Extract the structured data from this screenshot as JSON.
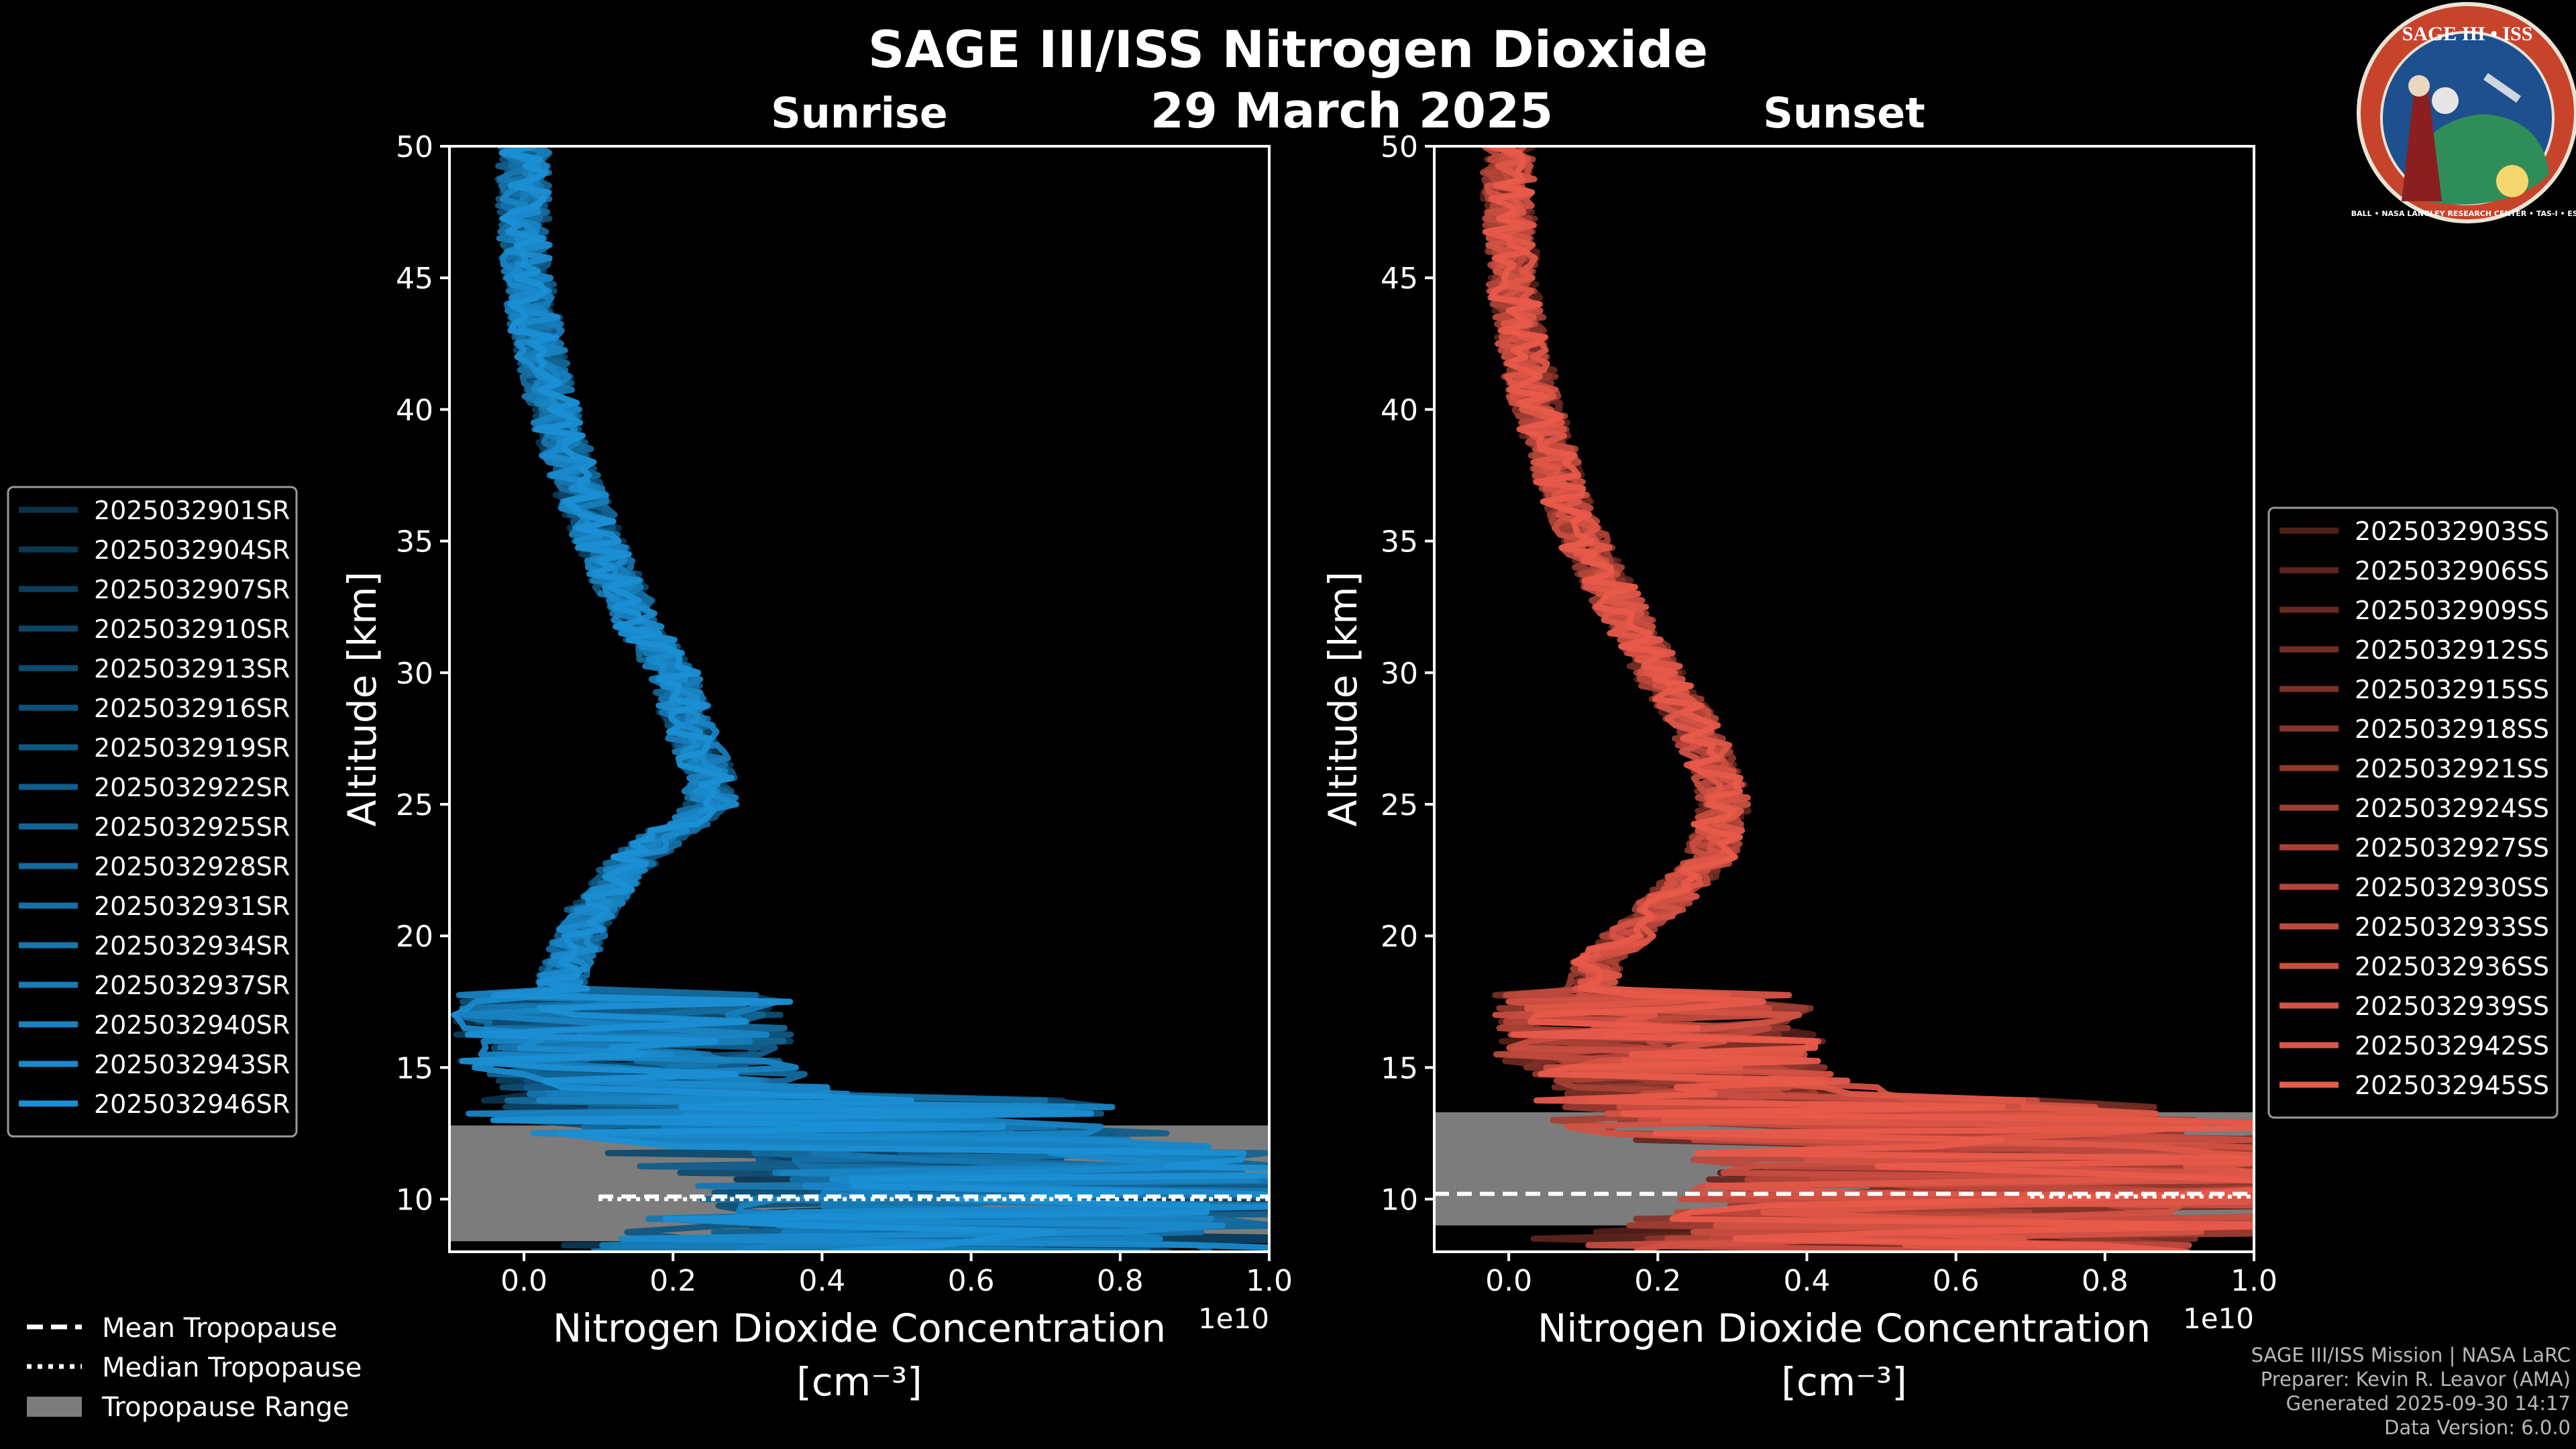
{
  "figure": {
    "title": "SAGE III/ISS Nitrogen Dioxide",
    "date": "29 March 2025",
    "credits": [
      "SAGE III/ISS Mission | NASA LaRC",
      "Preparer: Kevin R. Leavor (AMA)",
      "Generated 2025-09-30 14:17",
      "Data Version: 6.0.0"
    ],
    "logo": {
      "text": "SAGE III • ISS",
      "ring_text": "BALL • NASA LANGLEY RESEARCH CENTER • TAS-I • ESA",
      "icon": "mission-patch"
    },
    "tropo_legend": [
      "Mean Tropopause",
      "Median Tropopause",
      "Tropopause Range"
    ]
  },
  "chart_data": [
    {
      "type": "line",
      "title": "Sunrise",
      "xlabel": "Nitrogen Dioxide Concentration",
      "xunit": "[cm⁻³]",
      "xoffset": "1e10",
      "ylabel": "Altitude [km]",
      "xlim": [
        -0.1,
        1.0
      ],
      "ylim": [
        8,
        50
      ],
      "xticks": [
        0.0,
        0.2,
        0.4,
        0.6,
        0.8,
        1.0
      ],
      "xtick_labels": [
        "0.0",
        "0.2",
        "0.4",
        "0.6",
        "0.8",
        "1.0"
      ],
      "yticks": [
        10,
        15,
        20,
        25,
        30,
        35,
        40,
        45,
        50
      ],
      "tropopause": {
        "mean": 10.1,
        "median": 10.0,
        "range": [
          8.4,
          12.8
        ]
      },
      "color": "#1b8fd4",
      "legend_position": "left",
      "series": [
        {
          "name": "2025032901SR"
        },
        {
          "name": "2025032904SR"
        },
        {
          "name": "2025032907SR"
        },
        {
          "name": "2025032910SR"
        },
        {
          "name": "2025032913SR"
        },
        {
          "name": "2025032916SR"
        },
        {
          "name": "2025032919SR"
        },
        {
          "name": "2025032922SR"
        },
        {
          "name": "2025032925SR"
        },
        {
          "name": "2025032928SR"
        },
        {
          "name": "2025032931SR"
        },
        {
          "name": "2025032934SR"
        },
        {
          "name": "2025032937SR"
        },
        {
          "name": "2025032940SR"
        },
        {
          "name": "2025032943SR"
        },
        {
          "name": "2025032946SR"
        }
      ],
      "profile": {
        "altitudes": [
          50,
          47,
          44,
          41,
          38,
          35,
          32,
          30,
          28,
          26,
          25,
          23,
          21,
          19,
          17,
          15,
          14,
          13,
          12,
          11,
          10,
          9,
          8.5
        ],
        "values": [
          0.0,
          0.0,
          0.01,
          0.03,
          0.06,
          0.1,
          0.15,
          0.2,
          0.22,
          0.25,
          0.25,
          0.15,
          0.09,
          0.06,
          0.04,
          0.05,
          0.12,
          0.2,
          0.35,
          0.45,
          0.5,
          0.4,
          0.3
        ]
      }
    },
    {
      "type": "line",
      "title": "Sunset",
      "xlabel": "Nitrogen Dioxide Concentration",
      "xunit": "[cm⁻³]",
      "xoffset": "1e10",
      "ylabel": "Altitude [km]",
      "xlim": [
        -0.1,
        1.0
      ],
      "ylim": [
        8,
        50
      ],
      "xticks": [
        0.0,
        0.2,
        0.4,
        0.6,
        0.8,
        1.0
      ],
      "xtick_labels": [
        "0.0",
        "0.2",
        "0.4",
        "0.6",
        "0.8",
        "1.0"
      ],
      "yticks": [
        10,
        15,
        20,
        25,
        30,
        35,
        40,
        45,
        50
      ],
      "tropopause": {
        "mean": 10.2,
        "median": 10.1,
        "range": [
          9.0,
          13.3
        ]
      },
      "color": "#e85a4a",
      "legend_position": "right",
      "series": [
        {
          "name": "2025032903SS"
        },
        {
          "name": "2025032906SS"
        },
        {
          "name": "2025032909SS"
        },
        {
          "name": "2025032912SS"
        },
        {
          "name": "2025032915SS"
        },
        {
          "name": "2025032918SS"
        },
        {
          "name": "2025032921SS"
        },
        {
          "name": "2025032924SS"
        },
        {
          "name": "2025032927SS"
        },
        {
          "name": "2025032930SS"
        },
        {
          "name": "2025032933SS"
        },
        {
          "name": "2025032936SS"
        },
        {
          "name": "2025032939SS"
        },
        {
          "name": "2025032942SS"
        },
        {
          "name": "2025032945SS"
        }
      ],
      "profile": {
        "altitudes": [
          50,
          47,
          44,
          41,
          38,
          35,
          32,
          30,
          28,
          26,
          25,
          23,
          21,
          19,
          17,
          15,
          14,
          13,
          12,
          11,
          10,
          9,
          8.5
        ],
        "values": [
          0.0,
          0.0,
          0.01,
          0.03,
          0.06,
          0.1,
          0.16,
          0.2,
          0.25,
          0.28,
          0.29,
          0.27,
          0.2,
          0.12,
          0.1,
          0.12,
          0.2,
          0.3,
          0.45,
          0.55,
          0.5,
          0.4,
          0.3
        ]
      }
    }
  ]
}
